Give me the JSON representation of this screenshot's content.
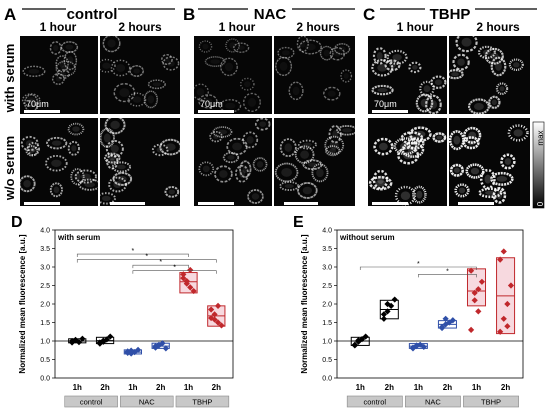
{
  "panels": {
    "A": {
      "letter": "A",
      "title": "control"
    },
    "B": {
      "letter": "B",
      "title": "NAC"
    },
    "C": {
      "letter": "C",
      "title": "TBHP"
    }
  },
  "time_labels": [
    "1 hour",
    "2 hours"
  ],
  "row_labels": [
    "with serum",
    "w/o serum"
  ],
  "scale_bar_label": "70μm",
  "colorbar": {
    "max": "max",
    "min": "0"
  },
  "chart_data": [
    {
      "type": "box",
      "panel_letter": "D",
      "title": "with serum",
      "ylabel": "Normalized mean fluorescence [a.u.]",
      "ylim": [
        0.0,
        4.0
      ],
      "yticks": [
        0.0,
        0.5,
        1.0,
        1.5,
        2.0,
        2.5,
        3.0,
        3.5,
        4.0
      ],
      "ytick_labels": [
        "0.0",
        "0.5",
        "1.0",
        "1.5",
        "2.0",
        "2.5",
        "3.0",
        "3.5",
        "4.0"
      ],
      "reference_line": 1.0,
      "categories": [
        "1h",
        "2h",
        "1h",
        "2h",
        "1h",
        "2h"
      ],
      "groups": [
        {
          "label": "control",
          "span": [
            0,
            1
          ]
        },
        {
          "label": "NAC",
          "span": [
            2,
            3
          ]
        },
        {
          "label": "TBHP",
          "span": [
            4,
            5
          ]
        }
      ],
      "colors": [
        "#000000",
        "#000000",
        "#2f4fa8",
        "#2f4fa8",
        "#c0282c",
        "#c0282c"
      ],
      "boxes": [
        {
          "low": 0.95,
          "median": 1.0,
          "high": 1.06
        },
        {
          "low": 0.93,
          "median": 1.01,
          "high": 1.1
        },
        {
          "low": 0.65,
          "median": 0.7,
          "high": 0.76
        },
        {
          "low": 0.8,
          "median": 0.86,
          "high": 0.94
        },
        {
          "low": 2.3,
          "median": 2.6,
          "high": 2.85
        },
        {
          "low": 1.4,
          "median": 1.68,
          "high": 1.95
        }
      ],
      "points": [
        [
          1.0,
          1.03,
          0.97,
          1.06,
          0.96,
          1.02
        ],
        [
          0.93,
          0.98,
          1.04,
          1.12,
          0.96,
          1.01
        ],
        [
          0.72,
          0.66,
          0.7,
          0.76,
          0.68,
          0.74
        ],
        [
          0.82,
          0.88,
          0.94,
          0.8,
          0.86,
          0.9
        ],
        [
          2.8,
          2.55,
          2.45,
          2.35,
          2.7,
          2.62,
          2.92
        ],
        [
          1.62,
          1.72,
          1.5,
          1.42,
          1.85,
          1.58,
          1.95
        ]
      ],
      "significance": [
        {
          "from": 0,
          "to": 4,
          "level": 3.35,
          "label": "*"
        },
        {
          "from": 0,
          "to": 5,
          "level": 3.2,
          "label": "*"
        },
        {
          "from": 2,
          "to": 4,
          "level": 3.05,
          "label": "*"
        },
        {
          "from": 2,
          "to": 5,
          "level": 2.9,
          "label": "*"
        }
      ]
    },
    {
      "type": "box",
      "panel_letter": "E",
      "title": "without serum",
      "ylabel": "Normalized mean fluorescence [a.u.]",
      "ylim": [
        0.0,
        4.0
      ],
      "yticks": [
        0.0,
        0.5,
        1.0,
        1.5,
        2.0,
        2.5,
        3.0,
        3.5,
        4.0
      ],
      "ytick_labels": [
        "0.0",
        "0.5",
        "1.0",
        "1.5",
        "2.0",
        "2.5",
        "3.0",
        "3.5",
        "4.0"
      ],
      "reference_line": 1.0,
      "categories": [
        "1h",
        "2h",
        "1h",
        "2h",
        "1h",
        "2h"
      ],
      "groups": [
        {
          "label": "control",
          "span": [
            0,
            1
          ]
        },
        {
          "label": "NAC",
          "span": [
            2,
            3
          ]
        },
        {
          "label": "TBHP",
          "span": [
            4,
            5
          ]
        }
      ],
      "colors": [
        "#000000",
        "#000000",
        "#2f4fa8",
        "#2f4fa8",
        "#c0282c",
        "#c0282c"
      ],
      "boxes": [
        {
          "low": 0.88,
          "median": 1.0,
          "high": 1.1
        },
        {
          "low": 1.6,
          "median": 1.85,
          "high": 2.1
        },
        {
          "low": 0.8,
          "median": 0.86,
          "high": 0.93
        },
        {
          "low": 1.35,
          "median": 1.45,
          "high": 1.55
        },
        {
          "low": 1.95,
          "median": 2.35,
          "high": 2.95
        },
        {
          "low": 1.2,
          "median": 2.22,
          "high": 3.25
        }
      ],
      "points": [
        [
          0.9,
          0.98,
          1.05,
          1.12,
          0.88,
          1.02
        ],
        [
          1.6,
          1.8,
          1.95,
          2.12,
          1.72,
          2.0
        ],
        [
          0.82,
          0.86,
          0.9,
          0.84,
          0.8,
          0.88
        ],
        [
          1.38,
          1.45,
          1.5,
          1.56,
          1.35,
          1.6
        ],
        [
          1.3,
          2.1,
          2.4,
          2.6,
          2.9,
          2.3,
          1.8
        ],
        [
          1.25,
          1.6,
          2.0,
          2.5,
          3.2,
          3.42,
          1.4
        ]
      ],
      "significance": [
        {
          "from": 0,
          "to": 4,
          "level": 3.0,
          "label": "*"
        },
        {
          "from": 2,
          "to": 4,
          "level": 2.8,
          "label": "*"
        }
      ]
    }
  ]
}
